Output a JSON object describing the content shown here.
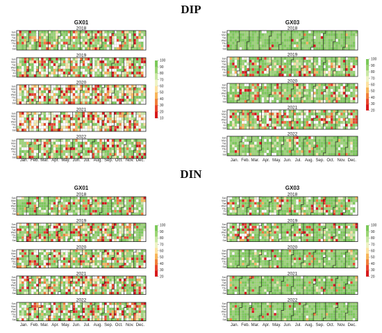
{
  "section_titles": [
    "DIP",
    "DIN"
  ],
  "day_labels": [
    "Sun",
    "Mon",
    "Tue",
    "Wed",
    "Thu",
    "Fri",
    "Sat"
  ],
  "month_labels": [
    "Jan.",
    "Feb.",
    "Mar.",
    "Apr.",
    "May.",
    "Jun.",
    "Jul.",
    "Aug.",
    "Sep.",
    "Oct.",
    "Nov.",
    "Dec."
  ],
  "colors": {
    "scale": [
      "#d7191c",
      "#e8452c",
      "#f07f3b",
      "#f7b55a",
      "#fde2a0",
      "#eef3c4",
      "#c9e8a4",
      "#9bd575",
      "#7cc95a"
    ],
    "missing": "#ffffff",
    "grid": "#bdbdbd",
    "outline": "#222222"
  },
  "chart_data": [
    {
      "type": "heatmap",
      "section": "DIP",
      "title": "GX01",
      "years": [
        "2018",
        "2019",
        "2020",
        "2021",
        "2022"
      ],
      "legend_ticks": [
        "100",
        "90",
        "80",
        "70",
        "60",
        "50",
        "40",
        "30",
        "20",
        "10"
      ],
      "color_range": [
        10,
        100
      ],
      "legend_placement": "right",
      "quality_by_year": [
        0.62,
        0.48,
        0.38,
        0.22,
        0.55
      ]
    },
    {
      "type": "heatmap",
      "section": "DIP",
      "title": "GX03",
      "years": [
        "2018",
        "2019",
        "2020",
        "2021",
        "2022"
      ],
      "legend_ticks": [
        "100",
        "90",
        "80",
        "70",
        "60",
        "50",
        "40",
        "30",
        "20"
      ],
      "color_range": [
        20,
        100
      ],
      "legend_placement": "right",
      "quality_by_year": [
        0.96,
        0.66,
        0.72,
        0.55,
        0.84
      ]
    },
    {
      "type": "heatmap",
      "section": "DIN",
      "title": "GX01",
      "years": [
        "2018",
        "2019",
        "2020",
        "2021",
        "2022"
      ],
      "legend_ticks": [
        "100",
        "90",
        "80",
        "70",
        "60",
        "50",
        "40",
        "30",
        "20"
      ],
      "color_range": [
        20,
        100
      ],
      "legend_placement": "right",
      "quality_by_year": [
        0.7,
        0.55,
        0.6,
        0.52,
        0.5
      ]
    },
    {
      "type": "heatmap",
      "section": "DIN",
      "title": "GX03",
      "years": [
        "2018",
        "2019",
        "2020",
        "2021",
        "2022"
      ],
      "legend_ticks": [
        "100",
        "90",
        "80",
        "70",
        "60",
        "50",
        "40",
        "30",
        "20"
      ],
      "color_range": [
        20,
        100
      ],
      "legend_placement": "right",
      "quality_by_year": [
        0.72,
        0.7,
        0.85,
        0.92,
        0.95
      ]
    }
  ]
}
